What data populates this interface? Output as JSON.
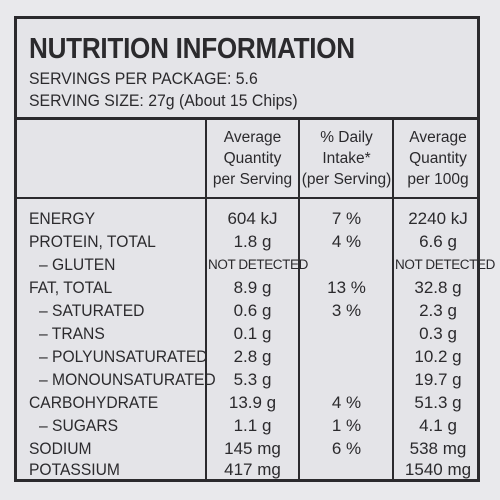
{
  "title": "NUTRITION INFORMATION",
  "servings_per_package": "SERVINGS PER PACKAGE: 5.6",
  "serving_size": "SERVING SIZE: 27g (About 15 Chips)",
  "columns": [
    {
      "lines": [
        "Average",
        "Quantity",
        "per Serving"
      ]
    },
    {
      "lines": [
        "% Daily",
        "Intake*",
        "(per Serving)"
      ]
    },
    {
      "lines": [
        "Average",
        "Quantity",
        "per 100g"
      ]
    }
  ],
  "rows": [
    {
      "label": "ENERGY",
      "per_serving": "604 kJ",
      "daily_intake": "7 %",
      "per_100g": "2240 kJ"
    },
    {
      "label": "PROTEIN, TOTAL",
      "per_serving": "1.8 g",
      "daily_intake": "4 %",
      "per_100g": "6.6 g"
    },
    {
      "label": "– GLUTEN",
      "per_serving": "NOT DETECTED",
      "daily_intake": "",
      "per_100g": "NOT DETECTED"
    },
    {
      "label": "FAT, TOTAL",
      "per_serving": "8.9 g",
      "daily_intake": "13 %",
      "per_100g": "32.8 g"
    },
    {
      "label": "– SATURATED",
      "per_serving": "0.6 g",
      "daily_intake": "3 %",
      "per_100g": "2.3 g"
    },
    {
      "label": "– TRANS",
      "per_serving": "0.1 g",
      "daily_intake": "",
      "per_100g": "0.3 g"
    },
    {
      "label": "– POLYUNSATURATED",
      "per_serving": "2.8 g",
      "daily_intake": "",
      "per_100g": "10.2 g"
    },
    {
      "label": "– MONOUNSATURATED",
      "per_serving": "5.3 g",
      "daily_intake": "",
      "per_100g": "19.7 g"
    },
    {
      "label": "CARBOHYDRATE",
      "per_serving": "13.9 g",
      "daily_intake": "4 %",
      "per_100g": "51.3 g"
    },
    {
      "label": "– SUGARS",
      "per_serving": "1.1 g",
      "daily_intake": "1 %",
      "per_100g": "4.1 g"
    },
    {
      "label": "SODIUM",
      "per_serving": "145 mg",
      "daily_intake": "6 %",
      "per_100g": "538 mg"
    },
    {
      "label": "POTASSIUM",
      "per_serving": "417 mg",
      "daily_intake": "",
      "per_100g": "1540 mg"
    }
  ]
}
